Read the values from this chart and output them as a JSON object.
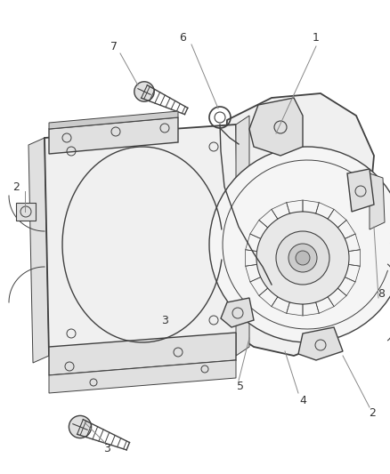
{
  "background_color": "#ffffff",
  "line_color": "#404040",
  "label_color": "#333333",
  "fig_width": 4.38,
  "fig_height": 5.33,
  "dpi": 100
}
